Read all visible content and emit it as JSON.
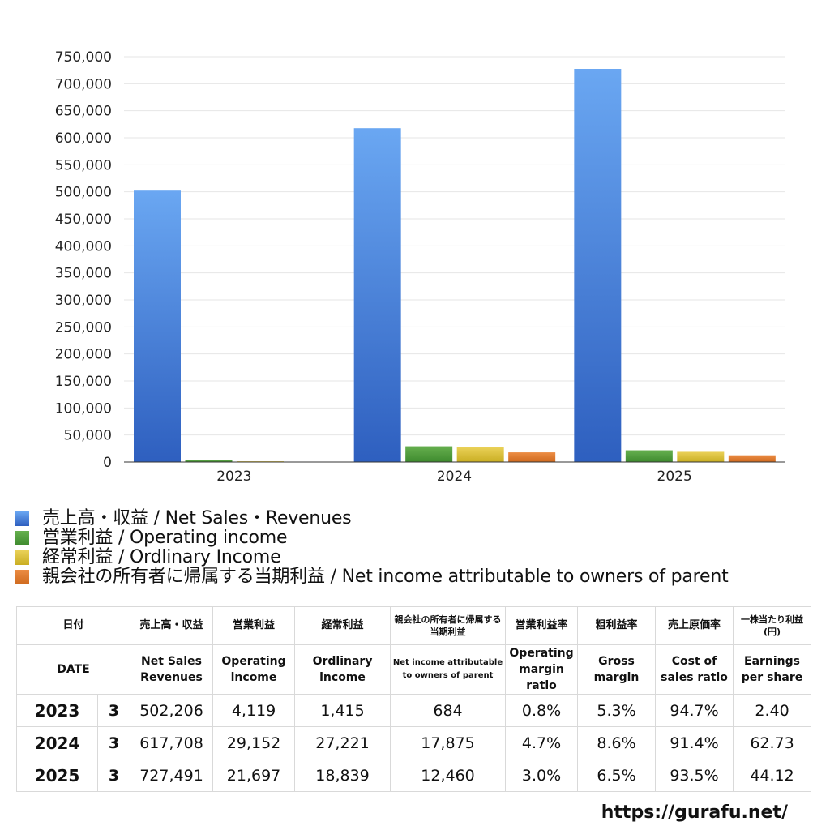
{
  "chart_data": {
    "type": "bar",
    "categories": [
      "2023",
      "2024",
      "2025"
    ],
    "series": [
      {
        "name": "売上高・収益 / Net Sales・Revenues",
        "values": [
          502206,
          617708,
          727491
        ],
        "color": "#4a86e0"
      },
      {
        "name": "営業利益 / Operating income",
        "values": [
          4119,
          29152,
          21697
        ],
        "color": "#4f9f3c"
      },
      {
        "name": "経常利益 / Ordlinary Income",
        "values": [
          1415,
          27221,
          18839
        ],
        "color": "#dcc43a"
      },
      {
        "name": "親会社の所有者に帰属する当期利益 / Net income attributable to owners of parent",
        "values": [
          684,
          17875,
          12460
        ],
        "color": "#e07b2f"
      }
    ],
    "ylim": [
      0,
      750000
    ],
    "yticks": [
      "0",
      "50,000",
      "100,000",
      "150,000",
      "200,000",
      "250,000",
      "300,000",
      "350,000",
      "400,000",
      "450,000",
      "500,000",
      "550,000",
      "600,000",
      "650,000",
      "700,000",
      "750,000"
    ],
    "grid": true,
    "legend_position": "bottom"
  },
  "table": {
    "header_jp": [
      "日付",
      "売上高・収益",
      "営業利益",
      "経常利益",
      "親会社の所有者に帰属する当期利益",
      "営業利益率",
      "粗利益率",
      "売上原価率",
      "一株当たり利益(円)"
    ],
    "header_en": [
      "DATE",
      "Net Sales Revenues",
      "Operating income",
      "Ordlinary income",
      "Net income attributable to owners of parent",
      "Operating margin ratio",
      "Gross margin",
      "Cost of sales ratio",
      "Earnings per share"
    ],
    "rows": [
      {
        "year": "2023",
        "month": "3",
        "cells": [
          "502,206",
          "4,119",
          "1,415",
          "684",
          "0.8%",
          "5.3%",
          "94.7%",
          "2.40"
        ]
      },
      {
        "year": "2024",
        "month": "3",
        "cells": [
          "617,708",
          "29,152",
          "27,221",
          "17,875",
          "4.7%",
          "8.6%",
          "91.4%",
          "62.73"
        ]
      },
      {
        "year": "2025",
        "month": "3",
        "cells": [
          "727,491",
          "21,697",
          "18,839",
          "12,460",
          "3.0%",
          "6.5%",
          "93.5%",
          "44.12"
        ]
      }
    ]
  },
  "footer": {
    "url": "https://gurafu.net/"
  }
}
